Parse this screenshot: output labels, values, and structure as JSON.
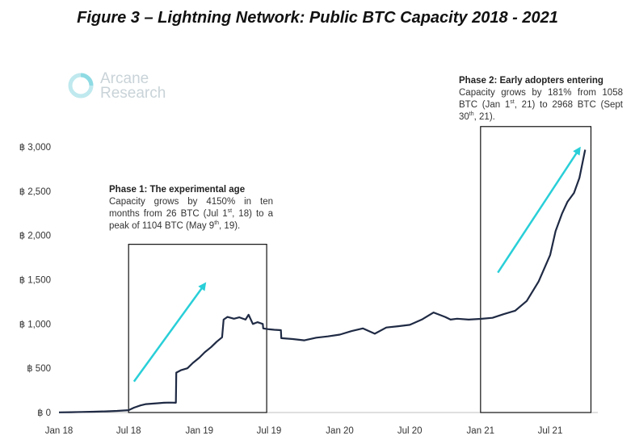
{
  "figure_title": "Figure 3 – Lightning Network: Public BTC Capacity 2018 - 2021",
  "logo": {
    "line1": "Arcane",
    "line2": "Research"
  },
  "colors": {
    "line": "#1f2a44",
    "arrow": "#29cfd8",
    "box": "#111111",
    "text": "#333333"
  },
  "annotations": {
    "phase1": {
      "title": "Phase 1: The experimental age",
      "body": [
        "Capacity grows by 4150% in ten months from 26 BTC (Jul 1",
        "st",
        ", 18) to a peak of 1104 BTC (May 9",
        "th",
        ", 19)."
      ]
    },
    "phase2": {
      "title": "Phase 2: Early adopters entering",
      "body": [
        "Capacity grows by 181% from 1058 BTC (Jan 1",
        "st",
        ", 21) to 2968 BTC (Sept 30",
        "th",
        ", 21)."
      ]
    }
  },
  "chart_data": {
    "type": "line",
    "title": "Lightning Network: Public BTC Capacity 2018 - 2021",
    "y_ticks": [
      "฿ 0",
      "฿ 500",
      "฿ 1,000",
      "฿ 1,500",
      "฿ 2,000",
      "฿ 2,500",
      "฿ 3,000"
    ],
    "ylim": [
      0,
      3000
    ],
    "x_ticks": [
      "Jan 18",
      "Jul 18",
      "Jan 19",
      "Jul 19",
      "Jan 20",
      "Jul 20",
      "Jan 21",
      "Jul 21"
    ],
    "xlim": [
      "2018-01-01",
      "2021-10-31"
    ],
    "grid": false,
    "series": [
      {
        "x": [
          "2018-01-01",
          "2018-02-01",
          "2018-03-01",
          "2018-04-01",
          "2018-05-01",
          "2018-06-01",
          "2018-07-01",
          "2018-07-15",
          "2018-08-01",
          "2018-08-15",
          "2018-09-01",
          "2018-09-15",
          "2018-10-01",
          "2018-10-15",
          "2018-11-01",
          "2018-11-02",
          "2018-11-15",
          "2018-12-01",
          "2018-12-15",
          "2019-01-01",
          "2019-01-15",
          "2019-02-01",
          "2019-02-15",
          "2019-03-01",
          "2019-03-05",
          "2019-03-15",
          "2019-04-01",
          "2019-04-15",
          "2019-05-01",
          "2019-05-09",
          "2019-05-20",
          "2019-06-01",
          "2019-06-15",
          "2019-06-16",
          "2019-07-01",
          "2019-07-15",
          "2019-08-01",
          "2019-08-02",
          "2019-09-01",
          "2019-10-01",
          "2019-11-01",
          "2019-12-01",
          "2020-01-01",
          "2020-02-01",
          "2020-03-01",
          "2020-04-01",
          "2020-05-01",
          "2020-06-01",
          "2020-07-01",
          "2020-08-01",
          "2020-09-01",
          "2020-10-01",
          "2020-10-15",
          "2020-11-01",
          "2020-12-01",
          "2021-01-01",
          "2021-02-01",
          "2021-03-01",
          "2021-04-01",
          "2021-05-01",
          "2021-06-01",
          "2021-07-01",
          "2021-07-15",
          "2021-08-01",
          "2021-08-15",
          "2021-09-01",
          "2021-09-15",
          "2021-09-30"
        ],
        "y": [
          2,
          4,
          6,
          9,
          13,
          18,
          26,
          55,
          80,
          95,
          100,
          105,
          110,
          112,
          110,
          450,
          480,
          500,
          560,
          620,
          680,
          740,
          800,
          850,
          1050,
          1080,
          1060,
          1075,
          1050,
          1104,
          1000,
          1020,
          1000,
          950,
          940,
          935,
          930,
          840,
          830,
          815,
          845,
          860,
          880,
          920,
          950,
          890,
          960,
          975,
          990,
          1050,
          1130,
          1080,
          1050,
          1060,
          1050,
          1058,
          1070,
          1110,
          1150,
          1260,
          1480,
          1780,
          2050,
          2250,
          2380,
          2480,
          2650,
          2968
        ]
      }
    ],
    "boxes": [
      {
        "x": [
          "2018-07-01",
          "2019-06-25"
        ],
        "y": [
          0,
          1900
        ]
      },
      {
        "x": [
          "2021-01-01",
          "2021-10-15"
        ],
        "y": [
          0,
          3230
        ]
      }
    ],
    "arrows": [
      {
        "from": {
          "x": "2018-07-15",
          "y": 350
        },
        "to": {
          "x": "2019-01-15",
          "y": 1450
        }
      },
      {
        "from": {
          "x": "2021-02-15",
          "y": 1580
        },
        "to": {
          "x": "2021-09-15",
          "y": 2980
        }
      }
    ]
  }
}
